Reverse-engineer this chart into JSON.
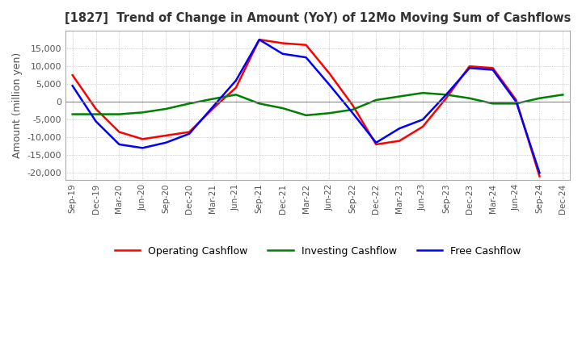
{
  "title": "[1827]  Trend of Change in Amount (YoY) of 12Mo Moving Sum of Cashflows",
  "ylabel": "Amount (million yen)",
  "x_labels": [
    "Sep-19",
    "Dec-19",
    "Mar-20",
    "Jun-20",
    "Sep-20",
    "Dec-20",
    "Mar-21",
    "Jun-21",
    "Sep-21",
    "Dec-21",
    "Mar-22",
    "Jun-22",
    "Sep-22",
    "Dec-22",
    "Mar-23",
    "Jun-23",
    "Sep-23",
    "Dec-23",
    "Mar-24",
    "Jun-24",
    "Sep-24",
    "Dec-24"
  ],
  "operating": [
    7500,
    -2000,
    -8500,
    -10500,
    -9500,
    -8500,
    -2000,
    4000,
    17500,
    16500,
    16000,
    8000,
    -1000,
    -12000,
    -11000,
    -7000,
    1000,
    10000,
    9500,
    500,
    -21000,
    null
  ],
  "investing": [
    -3500,
    -3500,
    -3500,
    -3000,
    -2000,
    -500,
    800,
    2000,
    -500,
    -1800,
    -3800,
    -3200,
    -2200,
    500,
    1500,
    2500,
    2000,
    1000,
    -500,
    -500,
    1000,
    2000
  ],
  "free": [
    4500,
    -5500,
    -12000,
    -13000,
    -11500,
    -9000,
    -1500,
    6000,
    17500,
    13500,
    12500,
    4800,
    -3200,
    -11500,
    -7500,
    -5000,
    2000,
    9500,
    9000,
    0,
    -20000,
    null
  ],
  "ylim": [
    -22000,
    20000
  ],
  "yticks": [
    -20000,
    -15000,
    -10000,
    -5000,
    0,
    5000,
    10000,
    15000
  ],
  "operating_color": "#ff0000",
  "investing_color": "#008000",
  "free_color": "#0000ff",
  "title_color": "#333333",
  "background_color": "#ffffff",
  "grid_color": "#aaaaaa"
}
